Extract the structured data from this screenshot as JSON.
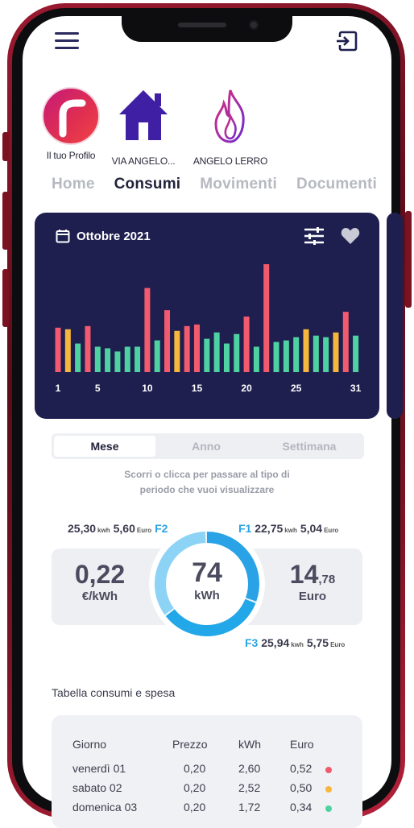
{
  "header": {
    "menu_icon": "hamburger-menu-icon",
    "exit_icon": "logout-icon"
  },
  "profiles": [
    {
      "label": "Il tuo Profilo",
      "icon": "brand-logo"
    },
    {
      "label": "VIA ANGELO...",
      "icon": "home-icon"
    },
    {
      "label": "ANGELO LERRO",
      "icon": "flame-icon"
    }
  ],
  "tabs": [
    "Home",
    "Consumi",
    "Movimenti",
    "Documenti"
  ],
  "active_tab": "Consumi",
  "card": {
    "month": "Ottobre 2021"
  },
  "chart_data": {
    "type": "bar",
    "x": [
      1,
      2,
      3,
      4,
      5,
      6,
      7,
      8,
      9,
      10,
      11,
      12,
      13,
      14,
      15,
      16,
      17,
      18,
      19,
      20,
      21,
      22,
      23,
      24,
      25,
      26,
      27,
      28,
      29,
      30,
      31
    ],
    "tick_labels": [
      "1",
      "5",
      "10",
      "15",
      "20",
      "25",
      "31"
    ],
    "values": [
      28,
      27,
      18,
      29,
      16,
      15,
      13,
      16,
      16,
      53,
      20,
      39,
      26,
      29,
      30,
      21,
      25,
      18,
      24,
      35,
      16,
      68,
      19,
      20,
      22,
      27,
      23,
      22,
      25,
      38,
      23
    ],
    "fuel_band": [
      "F1",
      "F2",
      "F3",
      "F1",
      "F3",
      "F3",
      "F3",
      "F3",
      "F3",
      "F1",
      "F3",
      "F1",
      "F2",
      "F1",
      "F1",
      "F3",
      "F3",
      "F3",
      "F3",
      "F1",
      "F3",
      "F1",
      "F3",
      "F3",
      "F3",
      "F2",
      "F3",
      "F3",
      "F2",
      "F1",
      "F3"
    ],
    "colors": {
      "F1": "#f25a6e",
      "F2": "#f6b73c",
      "F3": "#4fd2a1"
    },
    "title": "",
    "xlabel": "",
    "ylabel": ""
  },
  "period_selector": {
    "options": [
      "Mese",
      "Anno",
      "Settimana"
    ],
    "selected": "Mese"
  },
  "hint": {
    "line1": "Scorri o clicca per passare al tipo di",
    "line2": "periodo che vuoi visualizzare"
  },
  "bands": {
    "F2": {
      "kwh": "25,30",
      "kwh_unit": "kwh",
      "euro": "5,60",
      "euro_unit": "Euro",
      "label": "F2"
    },
    "F1": {
      "kwh": "22,75",
      "kwh_unit": "kwh",
      "euro": "5,04",
      "euro_unit": "Euro",
      "label": "F1"
    },
    "F3": {
      "kwh": "25,94",
      "kwh_unit": "kwh",
      "euro": "5,75",
      "euro_unit": "Euro",
      "label": "F3"
    }
  },
  "summary": {
    "price": "0,22",
    "price_unit": "€/kWh",
    "kwh": "74",
    "kwh_unit": "kWh",
    "euro_int": "14",
    "euro_dec": ",78",
    "euro_unit": "Euro"
  },
  "donut": {
    "F1_share": 0.31,
    "F2_share": 0.34,
    "F3_share": 0.35,
    "colors": {
      "F1": "#2aa3e6",
      "F2": "#22a7e8",
      "F3": "#8cd3f6"
    }
  },
  "table_section": {
    "title": "Tabella consumi e spesa",
    "headers": [
      "Giorno",
      "Prezzo",
      "kWh",
      "Euro"
    ],
    "rows": [
      {
        "day": "venerdì 01",
        "price": "0,20",
        "kwh": "2,60",
        "euro": "0,52",
        "color": "#f25a6e"
      },
      {
        "day": "sabato 02",
        "price": "0,20",
        "kwh": "2,52",
        "euro": "0,50",
        "color": "#f6b73c"
      },
      {
        "day": "domenica 03",
        "price": "0,20",
        "kwh": "1,72",
        "euro": "0,34",
        "color": "#4fd2a1"
      }
    ]
  }
}
